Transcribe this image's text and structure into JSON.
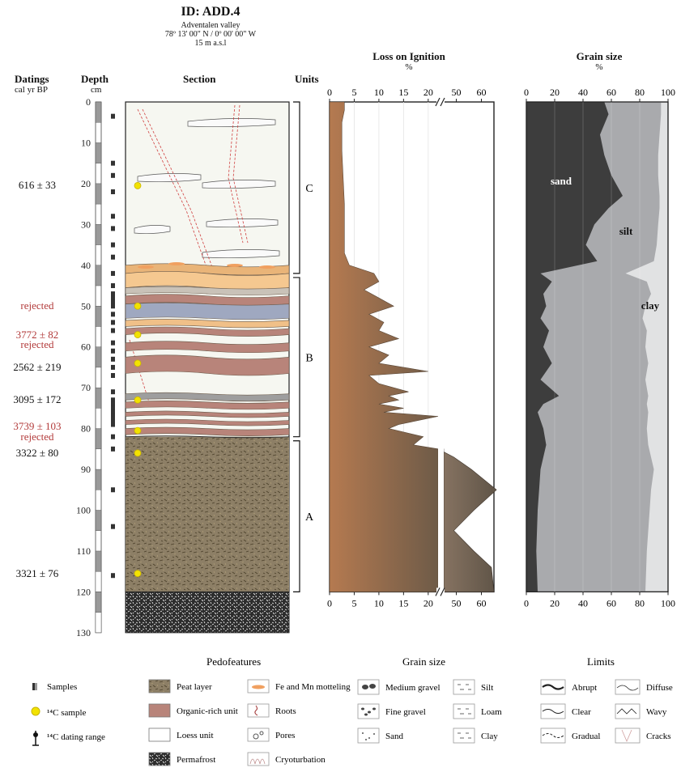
{
  "header": {
    "id": "ID: ADD.4",
    "place": "Adventalen valley",
    "coords": "78º 13' 00\" N / 0º 00' 00\" W",
    "elev": "15 m a.s.l"
  },
  "columns": {
    "datings": "Datings",
    "datings_unit": "cal yr BP",
    "depth": "Depth",
    "depth_unit": "cm",
    "section": "Section",
    "units": "Units",
    "loi": "Loss on Ignition",
    "loi_unit": "%",
    "grain": "Grain size",
    "grain_unit": "%"
  },
  "datings": [
    {
      "text": "616 ± 33",
      "depth": 20.5,
      "rejected": false
    },
    {
      "text": "rejected",
      "depth": 50,
      "rejected": true
    },
    {
      "text": "3772 ± 82",
      "depth": 57,
      "rejected": true
    },
    {
      "text": "rejected",
      "depth": 59.5,
      "rejected": true
    },
    {
      "text": "2562 ± 219",
      "depth": 65,
      "rejected": false
    },
    {
      "text": "3095 ± 172",
      "depth": 73,
      "rejected": false
    },
    {
      "text": "3739 ± 103",
      "depth": 79.5,
      "rejected": true
    },
    {
      "text": "rejected",
      "depth": 82,
      "rejected": true
    },
    {
      "text": "3322 ± 80",
      "depth": 86,
      "rejected": false
    },
    {
      "text": "3321 ± 76",
      "depth": 115.5,
      "rejected": false
    }
  ],
  "units": [
    {
      "label": "C",
      "top": 0,
      "bottom": 42
    },
    {
      "label": "B",
      "top": 43,
      "bottom": 82
    },
    {
      "label": "A",
      "top": 83,
      "bottom": 120
    }
  ],
  "chart_data": [
    {
      "type": "area",
      "title": "Loss on Ignition",
      "xlabel": "%",
      "ylabel": "Depth cm",
      "axis_break": true,
      "xticks_left": [
        "0",
        "5",
        "10",
        "15",
        "20"
      ],
      "xticks_right": [
        "50",
        "60"
      ],
      "ylim": [
        0,
        130
      ],
      "depth": [
        0,
        2,
        5,
        12,
        25,
        37,
        40,
        42,
        44,
        46,
        48,
        50,
        52,
        54,
        56,
        58,
        60,
        62,
        64,
        66,
        67,
        69,
        71,
        72,
        73,
        74,
        75,
        76,
        77,
        79,
        80,
        82,
        84,
        85,
        87,
        90,
        95,
        100,
        105,
        110,
        114,
        120
      ],
      "loi": [
        3,
        3,
        2.5,
        2.5,
        3,
        3,
        4,
        9,
        10,
        7,
        10,
        13,
        8,
        11,
        10,
        14,
        8,
        12,
        10,
        20,
        8,
        10,
        16,
        12,
        14,
        10,
        15,
        11,
        22,
        14,
        12,
        19,
        17,
        22,
        49,
        56,
        66,
        57,
        49,
        57,
        64,
        65
      ]
    },
    {
      "type": "area",
      "title": "Grain size",
      "xlabel": "%",
      "ylabel": "Depth cm",
      "xticks": [
        "0",
        "20",
        "40",
        "60",
        "80",
        "100"
      ],
      "xlim": [
        0,
        100
      ],
      "ylim": [
        0,
        130
      ],
      "labels": [
        "sand",
        "silt",
        "clay"
      ],
      "depth": [
        0,
        3,
        8,
        13,
        18,
        23,
        26,
        30,
        35,
        39,
        42,
        44,
        47,
        50,
        53,
        56,
        60,
        64,
        68,
        72,
        74,
        76,
        80,
        84,
        90,
        95,
        100,
        110,
        120
      ],
      "sand": [
        55,
        58,
        52,
        55,
        60,
        68,
        58,
        48,
        42,
        50,
        10,
        18,
        12,
        14,
        10,
        16,
        12,
        18,
        10,
        23,
        12,
        8,
        12,
        14,
        10,
        9,
        8,
        7,
        8
      ],
      "sand_silt": [
        95,
        95,
        94,
        93,
        93,
        94,
        94,
        93,
        92,
        90,
        70,
        85,
        88,
        84,
        82,
        85,
        84,
        86,
        84,
        86,
        85,
        86,
        85,
        86,
        90,
        88,
        87,
        85,
        84
      ]
    }
  ],
  "legend": {
    "samples": {
      "label": "Samples"
    },
    "c14": {
      "label": "¹⁴C sample"
    },
    "range": {
      "label": "¹⁴C dating range"
    },
    "pedofeatures_title": "Pedofeatures",
    "pedofeatures": [
      {
        "label": "Peat layer",
        "color": "#bfa98a"
      },
      {
        "label": "Organic-rich unit",
        "color": "#b8847a"
      },
      {
        "label": "Loess unit",
        "color": "#ffffff"
      },
      {
        "label": "Permafrost",
        "color": "#333333"
      }
    ],
    "pedofeatures2": [
      {
        "label": "Fe and Mn motteling"
      },
      {
        "label": "Roots"
      },
      {
        "label": "Pores"
      },
      {
        "label": "Cryoturbation"
      }
    ],
    "grain_title": "Grain size",
    "grain1": [
      {
        "label": "Medium gravel"
      },
      {
        "label": "Fine gravel"
      },
      {
        "label": "Sand"
      }
    ],
    "grain2": [
      {
        "label": "Silt"
      },
      {
        "label": "Loam"
      },
      {
        "label": "Clay"
      }
    ],
    "limits_title": "Limits",
    "limits1": [
      {
        "label": "Abrupt"
      },
      {
        "label": "Clear"
      },
      {
        "label": "Gradual"
      }
    ],
    "limits2": [
      {
        "label": "Diffuse"
      },
      {
        "label": "Wavy"
      },
      {
        "label": "Cracks"
      }
    ]
  },
  "colors": {
    "loi_brown": "#b07a55",
    "loi_grey": "#6f6658",
    "sand": "#3d3d3d",
    "silt": "#a9aaad",
    "clay": "#e1e2e3",
    "rejected": "#b23a3a"
  }
}
